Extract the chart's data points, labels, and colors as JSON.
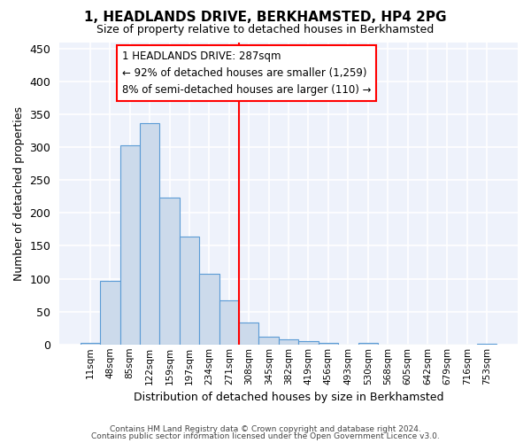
{
  "title": "1, HEADLANDS DRIVE, BERKHAMSTED, HP4 2PG",
  "subtitle": "Size of property relative to detached houses in Berkhamsted",
  "xlabel": "Distribution of detached houses by size in Berkhamsted",
  "ylabel": "Number of detached properties",
  "bar_color": "#ccdaeb",
  "bar_edge_color": "#5b9bd5",
  "background_color": "#eef2fb",
  "grid_color": "#ffffff",
  "bin_labels": [
    "11sqm",
    "48sqm",
    "85sqm",
    "122sqm",
    "159sqm",
    "197sqm",
    "234sqm",
    "271sqm",
    "308sqm",
    "345sqm",
    "382sqm",
    "419sqm",
    "456sqm",
    "493sqm",
    "530sqm",
    "568sqm",
    "605sqm",
    "642sqm",
    "679sqm",
    "716sqm",
    "753sqm"
  ],
  "bar_heights": [
    3,
    97,
    303,
    336,
    224,
    164,
    108,
    67,
    33,
    12,
    8,
    5,
    2,
    0,
    2,
    0,
    0,
    0,
    0,
    0,
    1
  ],
  "ylim": [
    0,
    460
  ],
  "yticks": [
    0,
    50,
    100,
    150,
    200,
    250,
    300,
    350,
    400,
    450
  ],
  "property_label": "1 HEADLANDS DRIVE: 287sqm",
  "annotation_line1": "← 92% of detached houses are smaller (1,259)",
  "annotation_line2": "8% of semi-detached houses are larger (110) →",
  "vline_x": 7.5,
  "footer_line1": "Contains HM Land Registry data © Crown copyright and database right 2024.",
  "footer_line2": "Contains public sector information licensed under the Open Government Licence v3.0."
}
